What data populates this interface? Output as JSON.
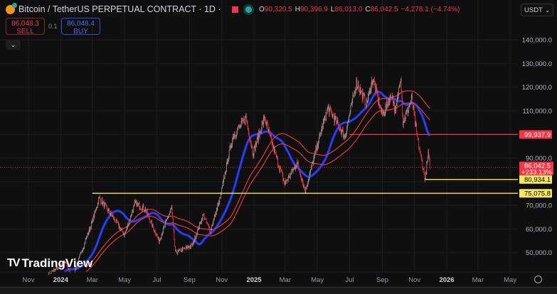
{
  "header": {
    "symbol": "Bitcoin / TetherUS PERPETUAL CONTRACT · 1D ·",
    "ohlc": {
      "o_label": "O",
      "o": "90,320.5",
      "h_label": "H",
      "h": "90,396.9",
      "l_label": "L",
      "l": "86,013.0",
      "c_label": "C",
      "c": "86,042.5",
      "change": "−4,278.1 (−4.74%)"
    }
  },
  "trade": {
    "sell_price": "86,048.3",
    "sell_label": "SELL",
    "spread": "0.1",
    "buy_price": "86,048.4",
    "buy_label": "BUY",
    "collapse_icon": "chevron-down-icon"
  },
  "currency": {
    "value": "USDT"
  },
  "branding": {
    "logo": "TradingView"
  },
  "colors": {
    "background": "#0f0f0f",
    "up": "#9e9e9e",
    "down": "#f23645",
    "ma_blue": "#1f2fd1",
    "ma_red": "#e03a3a",
    "yellow": "#f5e663"
  },
  "chart_data": {
    "type": "candlestick",
    "interval": "1D",
    "y_axis": {
      "ticks": [
        140000,
        130000,
        120000,
        110000,
        100000,
        90000,
        80000,
        70000,
        60000,
        50000
      ],
      "tick_labels": [
        "140,000.0",
        "130,000.0",
        "120,000.0",
        "110,000.0",
        "",
        "90,000.0",
        "",
        "70,000.0",
        "60,000.0",
        "50,000.0"
      ],
      "ylim": [
        45000,
        145000
      ]
    },
    "x_axis": {
      "tick_labels": [
        "Nov",
        "2024",
        "Mar",
        "May",
        "Jul",
        "Sep",
        "Nov",
        "2025",
        "Mar",
        "May",
        "Jul",
        "Sep",
        "Nov",
        "2026",
        "Mar",
        "May"
      ],
      "tick_dates": [
        "2023-11",
        "2024-01",
        "2024-03",
        "2024-05",
        "2024-07",
        "2024-09",
        "2024-11",
        "2025-01",
        "2025-03",
        "2025-05",
        "2025-07",
        "2025-09",
        "2025-11",
        "2026-01",
        "2026-03",
        "2026-05"
      ]
    },
    "price_path": [
      [
        "2023-11-01",
        35000
      ],
      [
        "2024-01-10",
        46000
      ],
      [
        "2024-01-23",
        39500
      ],
      [
        "2024-02-28",
        62000
      ],
      [
        "2024-03-14",
        73000
      ],
      [
        "2024-04-15",
        63000
      ],
      [
        "2024-05-01",
        57500
      ],
      [
        "2024-05-21",
        71000
      ],
      [
        "2024-06-10",
        68000
      ],
      [
        "2024-07-05",
        55000
      ],
      [
        "2024-07-29",
        69000
      ],
      [
        "2024-08-05",
        50000
      ],
      [
        "2024-09-06",
        53000
      ],
      [
        "2024-09-27",
        66000
      ],
      [
        "2024-10-10",
        59000
      ],
      [
        "2024-10-29",
        73000
      ],
      [
        "2024-11-13",
        90000
      ],
      [
        "2024-11-22",
        99000
      ],
      [
        "2024-12-17",
        107000
      ],
      [
        "2024-12-30",
        92000
      ],
      [
        "2025-01-21",
        107000
      ],
      [
        "2025-02-03",
        97000
      ],
      [
        "2025-02-28",
        79000
      ],
      [
        "2025-03-24",
        88000
      ],
      [
        "2025-04-08",
        76000
      ],
      [
        "2025-05-10",
        103000
      ],
      [
        "2025-05-22",
        111000
      ],
      [
        "2025-06-22",
        99000
      ],
      [
        "2025-07-14",
        122000
      ],
      [
        "2025-08-02",
        113000
      ],
      [
        "2025-08-14",
        123500
      ],
      [
        "2025-09-01",
        108000
      ],
      [
        "2025-09-19",
        117000
      ],
      [
        "2025-09-26",
        109000
      ],
      [
        "2025-10-06",
        125500
      ],
      [
        "2025-10-10",
        105000
      ],
      [
        "2025-10-27",
        115000
      ],
      [
        "2025-11-05",
        100000
      ],
      [
        "2025-11-21",
        81000
      ],
      [
        "2025-11-27",
        91500
      ],
      [
        "2025-11-30",
        86042.5
      ]
    ],
    "horizontal_lines": [
      {
        "price": 99937.9,
        "label": "99,937.9",
        "color": "#f23645",
        "from": "2025-07-01"
      },
      {
        "price": 80934.1,
        "label": "80,934.1",
        "color": "#f5e663",
        "from": "2025-11-21"
      },
      {
        "price": 75075.8,
        "label": "75,075.8",
        "color": "#f5e663",
        "from": "2024-03-01"
      }
    ],
    "last_price": {
      "price": 86042.5,
      "label": "86,042.5",
      "change": "+233.13%"
    }
  }
}
